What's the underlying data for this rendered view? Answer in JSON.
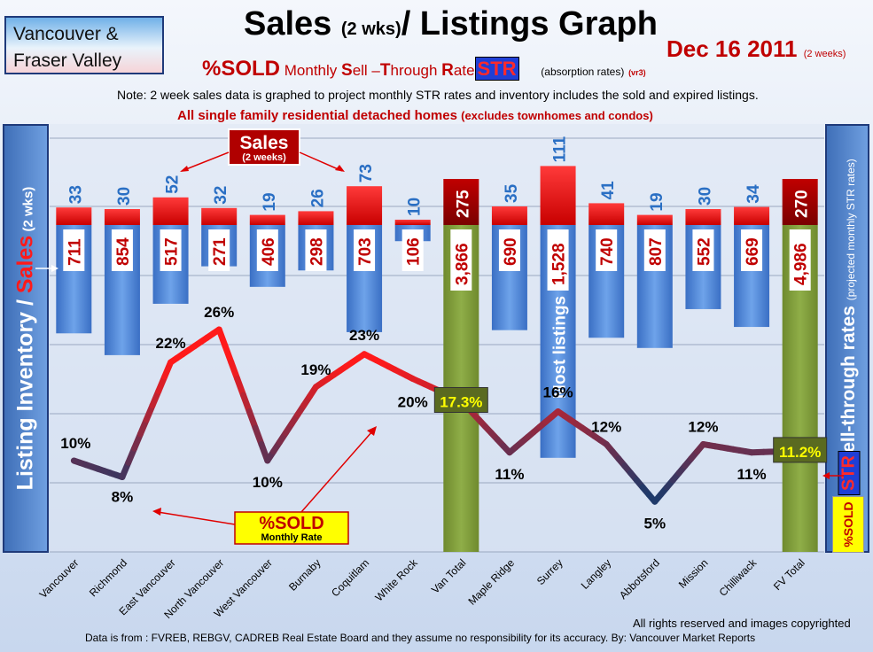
{
  "header": {
    "region_line1": "Vancouver &",
    "region_line2": "Fraser Valley",
    "title_a": "Sales",
    "title_b": "(2 wks)",
    "title_c": "/ Listings Graph",
    "date": "Dec 16 2011",
    "date_note": "(2 weeks)",
    "sub_sold": "%SOLD",
    "sub_m": "Monthly",
    "sub_s1": "S",
    "sub_s2": "ell –",
    "sub_t1": "T",
    "sub_t2": "hrough",
    "sub_r1": "R",
    "sub_r2": "ate",
    "sub_str": "STR",
    "sub_abs": "(absorption rates)",
    "sub_vr": "(vr3)",
    "note": "Note: 2 week sales data is graphed to project monthly STR rates and inventory includes the sold and expired listings.",
    "note2_a": "All single family residential detached homes",
    "note2_b": "(excludes townhomes and condos)"
  },
  "side": {
    "left_a": "Listing Inventory / ",
    "left_b": "Sales",
    "left_c": " (2 wks)",
    "right_a": "Sell-through rates",
    "right_b": "(projected monthly STR rates)",
    "right_str": "STR",
    "right_sold": "%SOLD"
  },
  "annotations": {
    "sales_box_a": "Sales",
    "sales_box_b": "(2 weeks)",
    "sold_box_a": "%SOLD",
    "sold_box_b": "Monthly Rate",
    "most_listings": "Most listings"
  },
  "footer": {
    "rights": "All rights reserved and  images copyrighted",
    "source": "Data is from : FVREB, REBGV, CADREB Real Estate Board and they assume no responsibility for its accuracy. By: Vancouver Market Reports"
  },
  "colors": {
    "sales_bar": "#ee0000",
    "total_sales_bar": "#a80000",
    "listing_bar": "#4a86d8",
    "total_listing_bar": "#7f9a3a",
    "line_high": "#ff1a1a",
    "line_low": "#1f3a6a",
    "total_label_bg": "#5a6a20",
    "total_label_text": "#ffff00"
  },
  "chart_data": {
    "type": "bar",
    "categories": [
      "Vancouver",
      "Richmond",
      "East Vancouver",
      "North Vancouver",
      "West Vancouver",
      "Burnaby",
      "Coquitlam",
      "White Rock",
      "Van Total",
      "Maple Ridge",
      "Surrey",
      "Langley",
      "Abbotsford",
      "Mission",
      "Chilliwack",
      "FV Total"
    ],
    "series": [
      {
        "name": "Sales",
        "values": [
          33,
          30,
          52,
          32,
          19,
          26,
          73,
          10,
          275,
          35,
          111,
          41,
          19,
          30,
          34,
          270
        ]
      },
      {
        "name": "Listing Inventory",
        "values": [
          711,
          854,
          517,
          271,
          406,
          298,
          703,
          106,
          3866,
          690,
          1528,
          740,
          807,
          552,
          669,
          4986
        ]
      },
      {
        "name": "%SOLD",
        "values": [
          10,
          8,
          22,
          26,
          10,
          19,
          23,
          20,
          17.3,
          11,
          16,
          12,
          5,
          12,
          11,
          11.2
        ]
      }
    ],
    "sales_labels": [
      "33",
      "30",
      "52",
      "32",
      "19",
      "26",
      "73",
      "10",
      "275",
      "35",
      "111",
      "41",
      "19",
      "30",
      "34",
      "270"
    ],
    "listing_labels": [
      "711",
      "854",
      "517",
      "271",
      "406",
      "298",
      "703",
      "106",
      "3,866",
      "690",
      "1,528",
      "740",
      "807",
      "552",
      "669",
      "4,986"
    ],
    "pct_labels": [
      "10%",
      "8%",
      "22%",
      "26%",
      "10%",
      "19%",
      "23%",
      "20%",
      "17.3%",
      "11%",
      "16%",
      "12%",
      "5%",
      "12%",
      "11%",
      "11.2%"
    ],
    "total_indices": [
      8,
      15
    ],
    "grid": true
  }
}
